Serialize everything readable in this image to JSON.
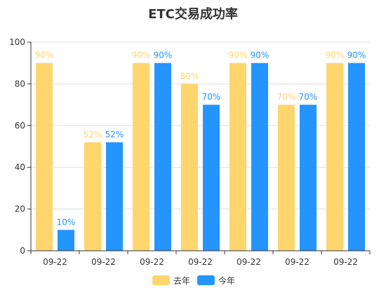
{
  "chart_data": {
    "type": "bar",
    "title": "ETC交易成功率",
    "categories": [
      "09-22",
      "09-22",
      "09-22",
      "09-22",
      "09-22",
      "09-22",
      "09-22"
    ],
    "series": [
      {
        "name": "去年",
        "color": "#FFD56E",
        "values": [
          90,
          52,
          90,
          80,
          90,
          70,
          90
        ],
        "labels": [
          "90%",
          "52%",
          "90%",
          "80%",
          "90%",
          "70%",
          "90%"
        ]
      },
      {
        "name": "今年",
        "color": "#2495FF",
        "values": [
          10,
          52,
          90,
          70,
          90,
          70,
          90
        ],
        "labels": [
          "10%",
          "52%",
          "90%",
          "70%",
          "90%",
          "70%",
          "90%"
        ]
      }
    ],
    "y_ticks": [
      "0",
      "20",
      "40",
      "60",
      "80",
      "100"
    ],
    "ylim": [
      0,
      100
    ],
    "grid": true,
    "legend_position": "bottom-center"
  }
}
